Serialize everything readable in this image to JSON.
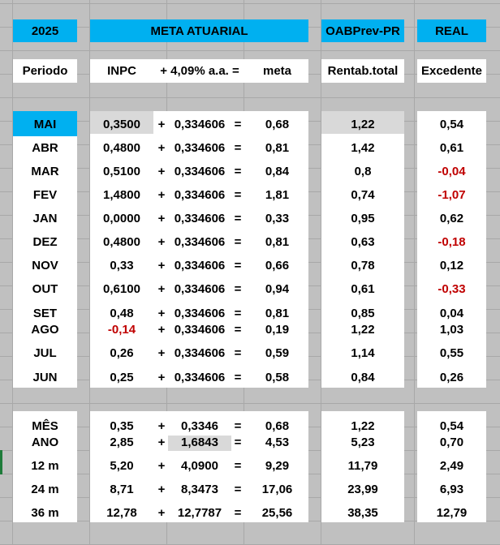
{
  "header": {
    "year": "2025",
    "meta_atuarial": "META ATUARIAL",
    "oabprev": "OABPrev-PR",
    "real": "REAL"
  },
  "columns": {
    "periodo": "Periodo",
    "inpc": "INPC",
    "plus_rate": "+ 4,09% a.a. =",
    "meta": "meta",
    "rentab": "Rentab.total",
    "excedente": "Excedente"
  },
  "symbols": {
    "plus": "+",
    "equals": "="
  },
  "colors": {
    "accent": "#00b0f0",
    "negative": "#c00000",
    "highlight": "#d9d9d9",
    "background": "#c0c0c0"
  },
  "monthly": [
    {
      "periodo": "MAI",
      "inpc": "0,3500",
      "rate": "0,334606",
      "meta": "0,68",
      "rentab": "1,22",
      "excedente": "0,54",
      "inpc_negative": false,
      "excedente_negative": false
    },
    {
      "periodo": "ABR",
      "inpc": "0,4800",
      "rate": "0,334606",
      "meta": "0,81",
      "rentab": "1,42",
      "excedente": "0,61",
      "inpc_negative": false,
      "excedente_negative": false
    },
    {
      "periodo": "MAR",
      "inpc": "0,5100",
      "rate": "0,334606",
      "meta": "0,84",
      "rentab": "0,8",
      "excedente": "-0,04",
      "inpc_negative": false,
      "excedente_negative": true
    },
    {
      "periodo": "FEV",
      "inpc": "1,4800",
      "rate": "0,334606",
      "meta": "1,81",
      "rentab": "0,74",
      "excedente": "-1,07",
      "inpc_negative": false,
      "excedente_negative": true
    },
    {
      "periodo": "JAN",
      "inpc": "0,0000",
      "rate": "0,334606",
      "meta": "0,33",
      "rentab": "0,95",
      "excedente": "0,62",
      "inpc_negative": false,
      "excedente_negative": false
    },
    {
      "periodo": "DEZ",
      "inpc": "0,4800",
      "rate": "0,334606",
      "meta": "0,81",
      "rentab": "0,63",
      "excedente": "-0,18",
      "inpc_negative": false,
      "excedente_negative": true
    },
    {
      "periodo": "NOV",
      "inpc": "0,33",
      "rate": "0,334606",
      "meta": "0,66",
      "rentab": "0,78",
      "excedente": "0,12",
      "inpc_negative": false,
      "excedente_negative": false
    },
    {
      "periodo": "OUT",
      "inpc": "0,6100",
      "rate": "0,334606",
      "meta": "0,94",
      "rentab": "0,61",
      "excedente": "-0,33",
      "inpc_negative": false,
      "excedente_negative": true
    },
    {
      "periodo": "SET",
      "inpc": "0,48",
      "rate": "0,334606",
      "meta": "0,81",
      "rentab": "0,85",
      "excedente": "0,04",
      "inpc_negative": false,
      "excedente_negative": false
    },
    {
      "periodo": "AGO",
      "inpc": "-0,14",
      "rate": "0,334606",
      "meta": "0,19",
      "rentab": "1,22",
      "excedente": "1,03",
      "inpc_negative": true,
      "excedente_negative": false
    },
    {
      "periodo": "JUL",
      "inpc": "0,26",
      "rate": "0,334606",
      "meta": "0,59",
      "rentab": "1,14",
      "excedente": "0,55",
      "inpc_negative": false,
      "excedente_negative": false
    },
    {
      "periodo": "JUN",
      "inpc": "0,25",
      "rate": "0,334606",
      "meta": "0,58",
      "rentab": "0,84",
      "excedente": "0,26",
      "inpc_negative": false,
      "excedente_negative": false
    }
  ],
  "summary": [
    {
      "periodo": "MÊS",
      "inpc": "0,35",
      "rate": "0,3346",
      "meta": "0,68",
      "rentab": "1,22",
      "excedente": "0,54"
    },
    {
      "periodo": "ANO",
      "inpc": "2,85",
      "rate": "1,6843",
      "meta": "4,53",
      "rentab": "5,23",
      "excedente": "0,70"
    },
    {
      "periodo": "12 m",
      "inpc": "5,20",
      "rate": "4,0900",
      "meta": "9,29",
      "rentab": "11,79",
      "excedente": "2,49"
    },
    {
      "periodo": "24 m",
      "inpc": "8,71",
      "rate": "8,3473",
      "meta": "17,06",
      "rentab": "23,99",
      "excedente": "6,93"
    },
    {
      "periodo": "36 m",
      "inpc": "12,78",
      "rate": "12,7787",
      "meta": "25,56",
      "rentab": "38,35",
      "excedente": "12,79"
    }
  ]
}
